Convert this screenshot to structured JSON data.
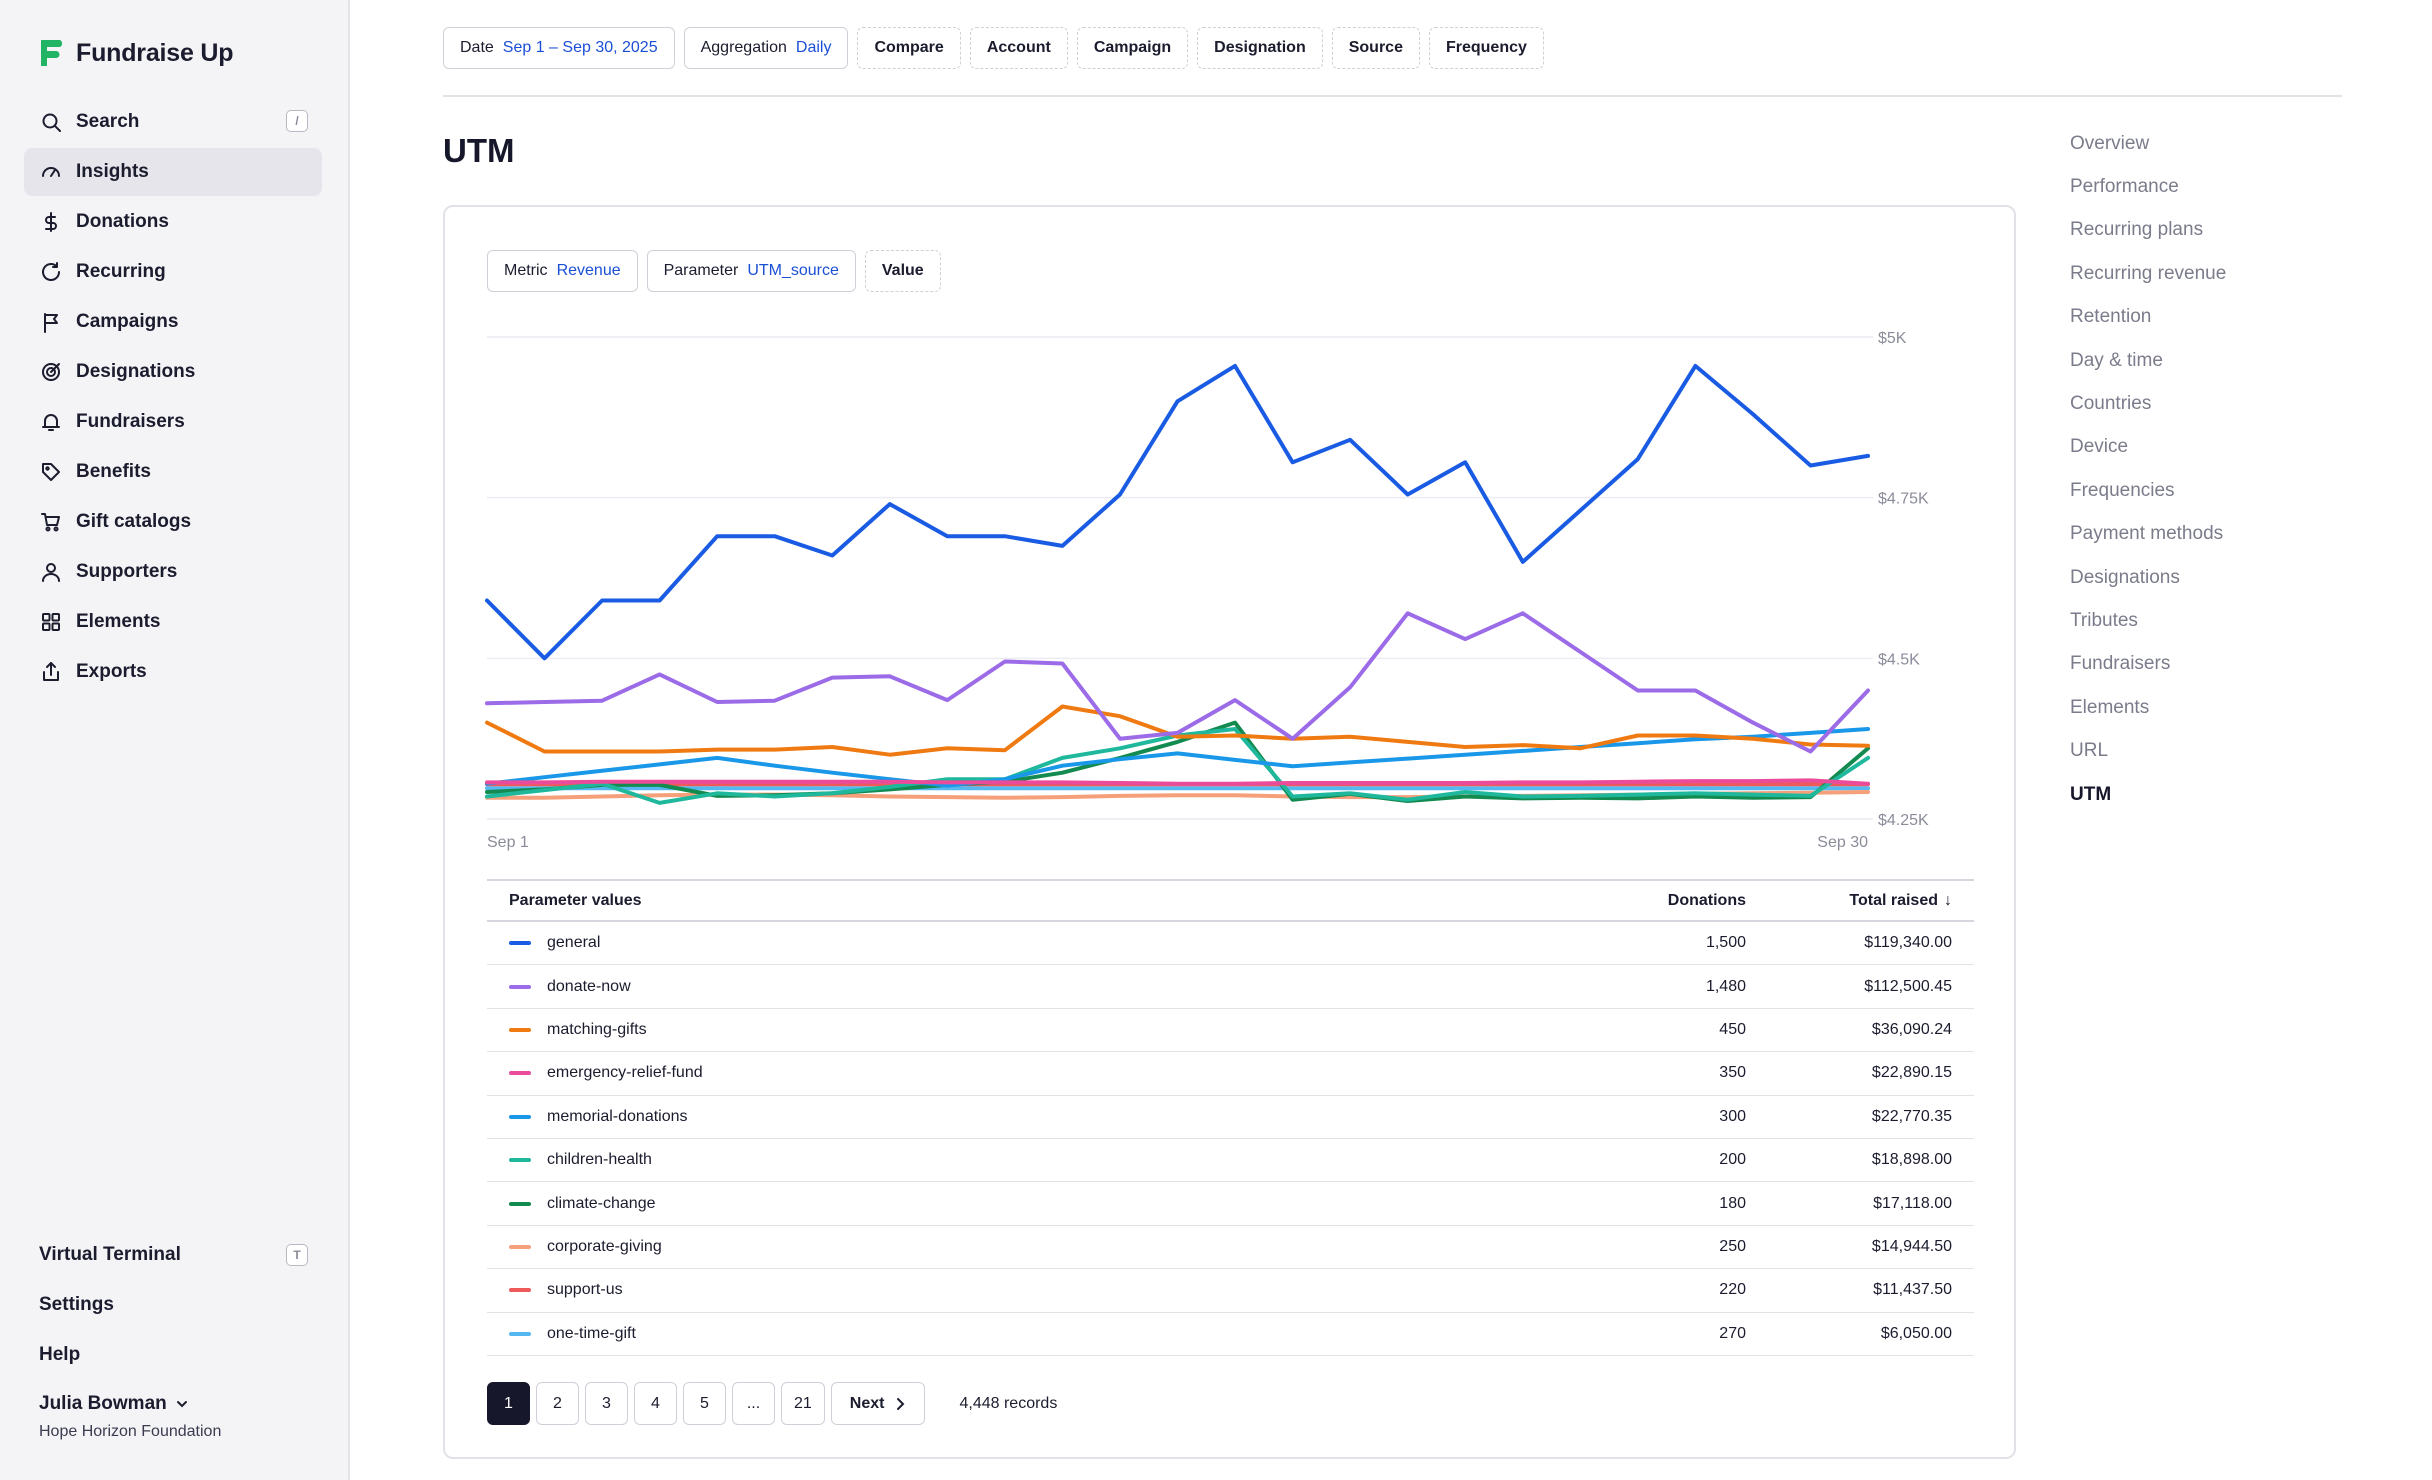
{
  "app": {
    "brand": "Fundraise Up"
  },
  "sidebar": {
    "items": [
      {
        "label": "Search",
        "icon": "search-icon",
        "shortcut": "/"
      },
      {
        "label": "Insights",
        "icon": "gauge-icon",
        "active": true
      },
      {
        "label": "Donations",
        "icon": "dollar-icon"
      },
      {
        "label": "Recurring",
        "icon": "refresh-icon"
      },
      {
        "label": "Campaigns",
        "icon": "flag-icon"
      },
      {
        "label": "Designations",
        "icon": "target-icon"
      },
      {
        "label": "Fundraisers",
        "icon": "bell-icon"
      },
      {
        "label": "Benefits",
        "icon": "tag-icon"
      },
      {
        "label": "Gift catalogs",
        "icon": "cart-icon"
      },
      {
        "label": "Supporters",
        "icon": "person-icon"
      },
      {
        "label": "Elements",
        "icon": "grid-icon"
      },
      {
        "label": "Exports",
        "icon": "export-icon"
      }
    ],
    "bottom": {
      "virtual_terminal": "Virtual Terminal",
      "virtual_terminal_shortcut": "T",
      "settings": "Settings",
      "help": "Help"
    },
    "user": {
      "name": "Julia Bowman",
      "org": "Hope Horizon Foundation"
    }
  },
  "filters": {
    "date": {
      "label": "Date",
      "value": "Sep 1 – Sep 30, 2025"
    },
    "aggregation": {
      "label": "Aggregation",
      "value": "Daily"
    },
    "compare": "Compare",
    "account": "Account",
    "campaign": "Campaign",
    "designation": "Designation",
    "source": "Source",
    "frequency": "Frequency"
  },
  "page": {
    "title": "UTM"
  },
  "card": {
    "metric": {
      "label": "Metric",
      "value": "Revenue"
    },
    "parameter": {
      "label": "Parameter",
      "value": "UTM_source"
    },
    "value_chip": "Value"
  },
  "chart_data": {
    "type": "line",
    "x_labels": [
      "Sep 1",
      "Sep 30"
    ],
    "y_ticks": [
      "$5K",
      "$4.75K",
      "$4.5K",
      "$4.25K"
    ],
    "ylim": [
      4250,
      5000
    ],
    "grid": true,
    "series": [
      {
        "name": "general",
        "color": "#1a5be3",
        "values": [
          4590,
          4500,
          4590,
          4590,
          4690,
          4690,
          4660,
          4740,
          4690,
          4690,
          4675,
          4755,
          4900,
          4955,
          4805,
          4840,
          4755,
          4805,
          4650,
          4730,
          4810,
          4955,
          4880,
          4800,
          4815
        ]
      },
      {
        "name": "donate-now",
        "color": "#9b6be8",
        "values": [
          4430,
          4432,
          4434,
          4475,
          4432,
          4434,
          4470,
          4472,
          4435,
          4495,
          4492,
          4375,
          4384,
          4435,
          4375,
          4455,
          4570,
          4530,
          4570,
          4510,
          4450,
          4450,
          4400,
          4355,
          4450
        ]
      },
      {
        "name": "matching-gifts",
        "color": "#f07a12",
        "values": [
          4400,
          4355,
          4355,
          4355,
          4358,
          4358,
          4362,
          4350,
          4360,
          4357,
          4425,
          4410,
          4378,
          4380,
          4375,
          4378,
          4370,
          4362,
          4365,
          4360,
          4380,
          4380,
          4375,
          4366,
          4364
        ]
      },
      {
        "name": "emergency-relief-fund",
        "color": "#ea4c9b",
        "values": [
          4307,
          4307,
          4308,
          4308,
          4308,
          4308,
          4308,
          4308,
          4307,
          4307,
          4307,
          4306,
          4305,
          4305,
          4306,
          4306,
          4306,
          4306,
          4307,
          4307,
          4308,
          4309,
          4309,
          4310,
          4305
        ]
      },
      {
        "name": "memorial-donations",
        "color": "#1997e8",
        "values": [
          4305,
          4315,
          4325,
          4335,
          4345,
          4333,
          4322,
          4312,
          4302,
          4312,
          4333,
          4343,
          4352,
          4342,
          4332,
          4338,
          4344,
          4350,
          4356,
          4362,
          4368,
          4374,
          4378,
          4384,
          4390
        ]
      },
      {
        "name": "children-health",
        "color": "#1fb89c",
        "values": [
          4285,
          4295,
          4305,
          4275,
          4290,
          4285,
          4290,
          4300,
          4312,
          4312,
          4345,
          4360,
          4380,
          4390,
          4285,
          4290,
          4280,
          4292,
          4285,
          4286,
          4288,
          4290,
          4288,
          4286,
          4345
        ]
      },
      {
        "name": "climate-change",
        "color": "#138a4f",
        "values": [
          4292,
          4296,
          4303,
          4303,
          4286,
          4287,
          4290,
          4296,
          4303,
          4308,
          4322,
          4345,
          4370,
          4400,
          4280,
          4289,
          4278,
          4285,
          4282,
          4283,
          4282,
          4285,
          4283,
          4284,
          4360
        ]
      },
      {
        "name": "corporate-giving",
        "color": "#f5a07a",
        "values": [
          4283,
          4283,
          4285,
          4287,
          4288,
          4288,
          4287,
          4285,
          4284,
          4283,
          4284,
          4286,
          4287,
          4287,
          4285,
          4284,
          4284,
          4285,
          4286,
          4287,
          4288,
          4289,
          4290,
          4291,
          4292
        ]
      },
      {
        "name": "support-us",
        "color": "#ee5a5a",
        "values": [
          4304,
          4304,
          4304,
          4304,
          4304,
          4304,
          4304,
          4304,
          4304,
          4304,
          4304,
          4304,
          4304,
          4304,
          4304,
          4304,
          4304,
          4304,
          4304,
          4304,
          4304,
          4304,
          4304,
          4304,
          4304
        ]
      },
      {
        "name": "one-time-gift",
        "color": "#56b8f0",
        "values": [
          4298,
          4298,
          4298,
          4298,
          4298,
          4298,
          4298,
          4298,
          4298,
          4298,
          4298,
          4298,
          4298,
          4298,
          4298,
          4298,
          4298,
          4298,
          4298,
          4298,
          4298,
          4298,
          4298,
          4298,
          4298
        ]
      }
    ]
  },
  "table": {
    "headers": {
      "name": "Parameter values",
      "donations": "Donations",
      "total": "Total raised"
    },
    "rows": [
      {
        "name": "general",
        "color": "#1a5be3",
        "donations": "1,500",
        "total": "$119,340.00"
      },
      {
        "name": "donate-now",
        "color": "#9b6be8",
        "donations": "1,480",
        "total": "$112,500.45"
      },
      {
        "name": "matching-gifts",
        "color": "#f07a12",
        "donations": "450",
        "total": "$36,090.24"
      },
      {
        "name": "emergency-relief-fund",
        "color": "#ea4c9b",
        "donations": "350",
        "total": "$22,890.15"
      },
      {
        "name": "memorial-donations",
        "color": "#1997e8",
        "donations": "300",
        "total": "$22,770.35"
      },
      {
        "name": "children-health",
        "color": "#1fb89c",
        "donations": "200",
        "total": "$18,898.00"
      },
      {
        "name": "climate-change",
        "color": "#138a4f",
        "donations": "180",
        "total": "$17,118.00"
      },
      {
        "name": "corporate-giving",
        "color": "#f5a07a",
        "donations": "250",
        "total": "$14,944.50"
      },
      {
        "name": "support-us",
        "color": "#ee5a5a",
        "donations": "220",
        "total": "$11,437.50"
      },
      {
        "name": "one-time-gift",
        "color": "#56b8f0",
        "donations": "270",
        "total": "$6,050.00"
      }
    ]
  },
  "pagination": {
    "pages": [
      "1",
      "2",
      "3",
      "4",
      "5",
      "...",
      "21"
    ],
    "current": "1",
    "next": "Next",
    "records": "4,448 records"
  },
  "toc": {
    "items": [
      "Overview",
      "Performance",
      "Recurring plans",
      "Recurring revenue",
      "Retention",
      "Day & time",
      "Countries",
      "Device",
      "Frequencies",
      "Payment methods",
      "Designations",
      "Tributes",
      "Fundraisers",
      "Elements",
      "URL",
      "UTM"
    ],
    "active": "UTM"
  }
}
